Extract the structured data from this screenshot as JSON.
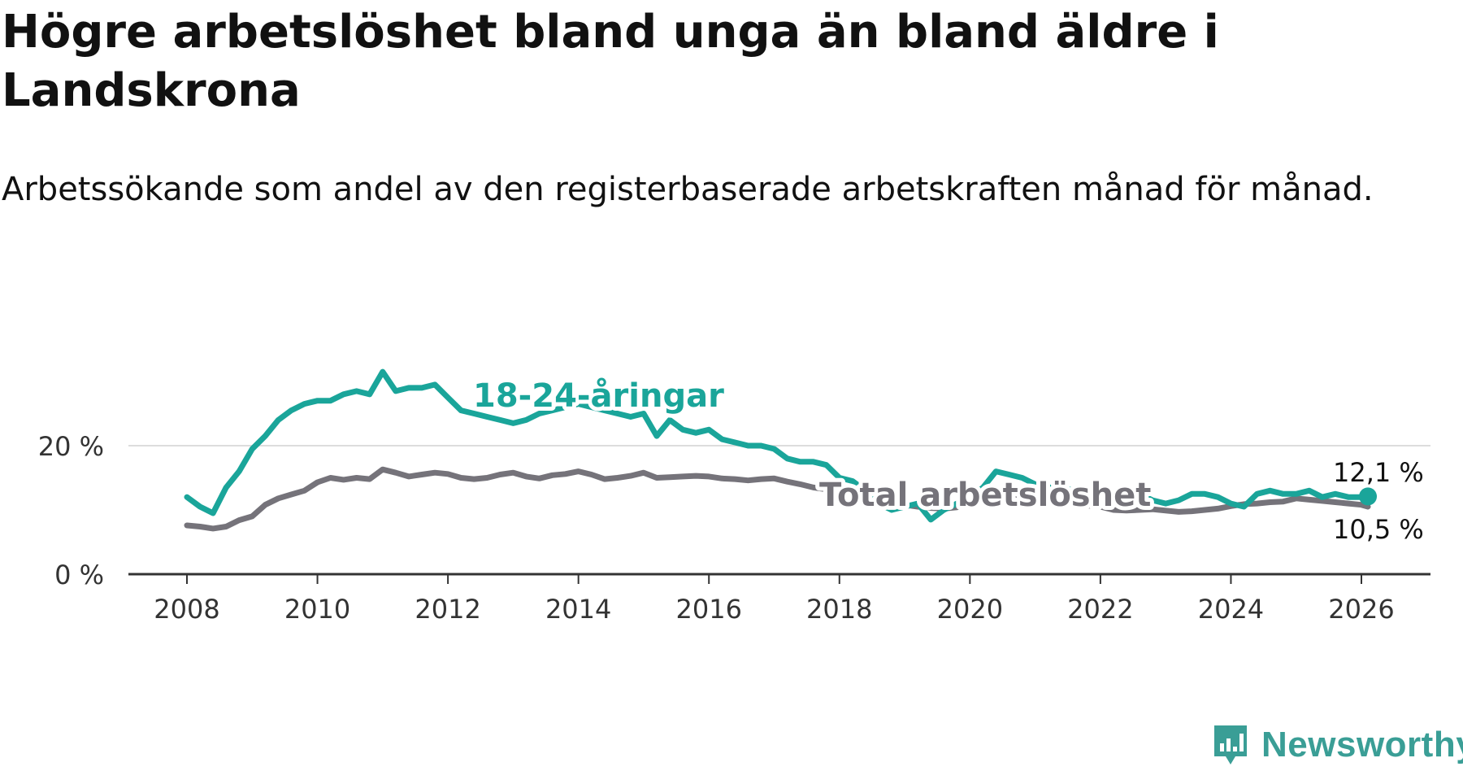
{
  "title": "Högre arbetslöshet bland unga än bland äldre i Landskrona",
  "subtitle": "Arbetssökande som andel av den registerbaserade arbetskraften månad för månad.",
  "brand": {
    "name": "Newsworthy",
    "icon": "newsworthy-logo-icon",
    "color": "#3a9e96"
  },
  "colors": {
    "youth": "#1aa59a",
    "total": "#75737a",
    "axis": "#333333",
    "grid": "#dddddd"
  },
  "chart_data": {
    "type": "line",
    "title": "Högre arbetslöshet bland unga än bland äldre i Landskrona",
    "xlabel": "",
    "ylabel": "",
    "xlim": [
      2007.0,
      2027.0
    ],
    "ylim": [
      0,
      32
    ],
    "y_ticks": [
      0,
      20
    ],
    "y_tick_labels": [
      "0 %",
      "20 %"
    ],
    "x_ticks": [
      2008,
      2010,
      2012,
      2014,
      2016,
      2018,
      2020,
      2022,
      2024,
      2026
    ],
    "x_tick_labels": [
      "2008",
      "2010",
      "2012",
      "2014",
      "2016",
      "2018",
      "2020",
      "2022",
      "2024",
      "2026"
    ],
    "grid": true,
    "legend": "inline labels",
    "series": [
      {
        "name": "18-24-åringar",
        "label": "18-24-åringar",
        "color": "#1aa59a",
        "end_label": "12,1 %",
        "x": [
          2008.0,
          2008.2,
          2008.4,
          2008.6,
          2008.8,
          2009.0,
          2009.2,
          2009.4,
          2009.6,
          2009.8,
          2010.0,
          2010.2,
          2010.4,
          2010.6,
          2010.8,
          2011.0,
          2011.2,
          2011.4,
          2011.6,
          2011.8,
          2012.0,
          2012.2,
          2012.4,
          2012.6,
          2012.8,
          2013.0,
          2013.2,
          2013.4,
          2013.6,
          2013.8,
          2014.0,
          2014.2,
          2014.4,
          2014.6,
          2014.8,
          2015.0,
          2015.2,
          2015.4,
          2015.6,
          2015.8,
          2016.0,
          2016.2,
          2016.4,
          2016.6,
          2016.8,
          2017.0,
          2017.2,
          2017.4,
          2017.6,
          2017.8,
          2018.0,
          2018.2,
          2018.4,
          2018.6,
          2018.8,
          2019.0,
          2019.2,
          2019.4,
          2019.6,
          2019.8,
          2020.0,
          2020.2,
          2020.4,
          2020.6,
          2020.8,
          2021.0,
          2021.2,
          2021.4,
          2021.6,
          2021.8,
          2022.0,
          2022.2,
          2022.4,
          2022.6,
          2022.8,
          2023.0,
          2023.2,
          2023.4,
          2023.6,
          2023.8,
          2024.0,
          2024.2,
          2024.4,
          2024.6,
          2024.8,
          2025.0,
          2025.2,
          2025.4,
          2025.6,
          2025.8,
          2026.0,
          2026.1
        ],
        "values": [
          12.0,
          10.5,
          9.5,
          13.5,
          16.0,
          19.5,
          21.5,
          24.0,
          25.5,
          26.5,
          27.0,
          27.0,
          28.0,
          28.5,
          28.0,
          31.5,
          28.5,
          29.0,
          29.0,
          29.5,
          27.5,
          25.5,
          25.0,
          24.5,
          24.0,
          23.5,
          24.0,
          25.0,
          25.5,
          26.0,
          26.5,
          26.0,
          25.5,
          25.0,
          24.5,
          25.0,
          21.5,
          24.0,
          22.5,
          22.0,
          22.5,
          21.0,
          20.5,
          20.0,
          20.0,
          19.5,
          18.0,
          17.5,
          17.5,
          17.0,
          15.0,
          14.5,
          13.0,
          11.0,
          10.0,
          10.5,
          11.0,
          8.5,
          10.0,
          11.0,
          12.0,
          13.5,
          16.0,
          15.5,
          15.0,
          14.0,
          13.5,
          13.5,
          13.0,
          12.5,
          12.5,
          12.0,
          12.5,
          12.5,
          11.5,
          11.0,
          11.5,
          12.5,
          12.5,
          12.0,
          11.0,
          10.5,
          12.5,
          13.0,
          12.5,
          12.5,
          13.0,
          12.0,
          12.5,
          12.0,
          12.0,
          12.1
        ]
      },
      {
        "name": "Total arbetslöshet",
        "label": "Total arbetslöshet",
        "color": "#75737a",
        "end_label": "10,5 %",
        "x": [
          2008.0,
          2008.2,
          2008.4,
          2008.6,
          2008.8,
          2009.0,
          2009.2,
          2009.4,
          2009.6,
          2009.8,
          2010.0,
          2010.2,
          2010.4,
          2010.6,
          2010.8,
          2011.0,
          2011.2,
          2011.4,
          2011.6,
          2011.8,
          2012.0,
          2012.2,
          2012.4,
          2012.6,
          2012.8,
          2013.0,
          2013.2,
          2013.4,
          2013.6,
          2013.8,
          2014.0,
          2014.2,
          2014.4,
          2014.6,
          2014.8,
          2015.0,
          2015.2,
          2015.4,
          2015.6,
          2015.8,
          2016.0,
          2016.2,
          2016.4,
          2016.6,
          2016.8,
          2017.0,
          2017.2,
          2017.4,
          2017.6,
          2017.8,
          2018.0,
          2018.2,
          2018.4,
          2018.6,
          2018.8,
          2019.0,
          2019.2,
          2019.4,
          2019.6,
          2019.8,
          2020.0,
          2020.2,
          2020.4,
          2020.6,
          2020.8,
          2021.0,
          2021.2,
          2021.4,
          2021.6,
          2021.8,
          2022.0,
          2022.2,
          2022.4,
          2022.6,
          2022.8,
          2023.0,
          2023.2,
          2023.4,
          2023.6,
          2023.8,
          2024.0,
          2024.2,
          2024.4,
          2024.6,
          2024.8,
          2025.0,
          2025.2,
          2025.4,
          2025.6,
          2025.8,
          2026.0,
          2026.1
        ],
        "values": [
          7.6,
          7.4,
          7.1,
          7.4,
          8.4,
          9.0,
          10.8,
          11.8,
          12.4,
          13.0,
          14.3,
          15.0,
          14.7,
          15.0,
          14.8,
          16.3,
          15.8,
          15.2,
          15.5,
          15.8,
          15.6,
          15.0,
          14.8,
          15.0,
          15.5,
          15.8,
          15.2,
          14.9,
          15.4,
          15.6,
          16.0,
          15.5,
          14.8,
          15.0,
          15.3,
          15.8,
          15.0,
          15.1,
          15.2,
          15.3,
          15.2,
          14.9,
          14.8,
          14.6,
          14.8,
          14.9,
          14.4,
          14.0,
          13.5,
          13.2,
          12.8,
          12.4,
          12.0,
          11.5,
          11.0,
          10.8,
          10.5,
          10.3,
          10.2,
          10.4,
          11.0,
          11.5,
          12.0,
          12.2,
          12.0,
          11.8,
          11.5,
          11.3,
          11.0,
          10.7,
          10.5,
          10.0,
          9.9,
          10.0,
          10.1,
          9.9,
          9.7,
          9.8,
          10.0,
          10.2,
          10.6,
          10.9,
          11.0,
          11.2,
          11.3,
          11.8,
          11.6,
          11.4,
          11.2,
          11.0,
          10.8,
          10.5
        ]
      }
    ]
  }
}
